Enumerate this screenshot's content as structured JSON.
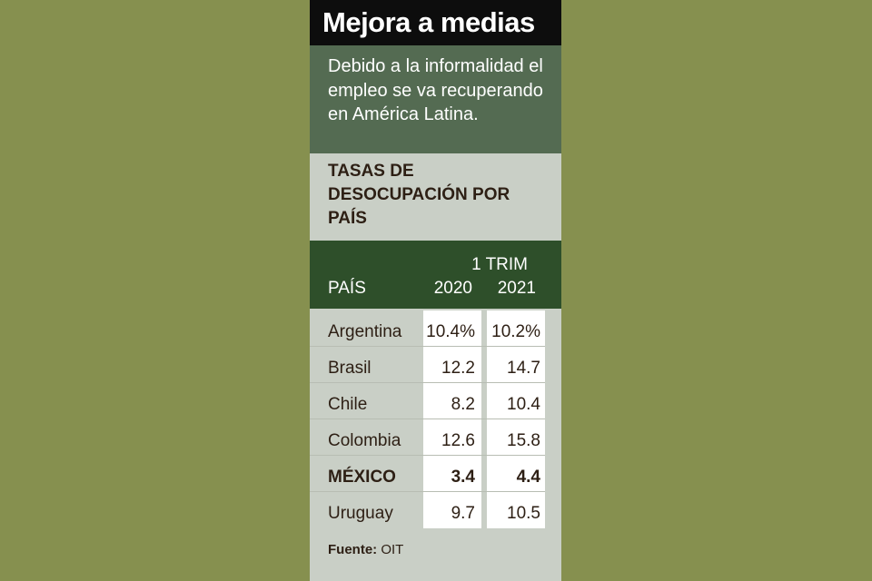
{
  "title": "Mejora a medias",
  "subtitle": "Debido a la informalidad el empleo se va recuperando en América Latina.",
  "chart_data": {
    "type": "table",
    "title": "TASAS DE DESOCUPACIÓN POR PAÍS",
    "column_group": "1 TRIM",
    "columns": [
      "PAÍS",
      "2020",
      "2021"
    ],
    "rows": [
      {
        "country": "Argentina",
        "v2020": "10.4%",
        "v2021": "10.2%",
        "highlight": false
      },
      {
        "country": "Brasil",
        "v2020": "12.2",
        "v2021": "14.7",
        "highlight": false
      },
      {
        "country": "Chile",
        "v2020": "8.2",
        "v2021": "10.4",
        "highlight": false
      },
      {
        "country": "Colombia",
        "v2020": "12.6",
        "v2021": "15.8",
        "highlight": false
      },
      {
        "country": "MÉXICO",
        "v2020": "3.4",
        "v2021": "4.4",
        "highlight": true
      },
      {
        "country": "Uruguay",
        "v2020": "9.7",
        "v2021": "10.5",
        "highlight": false
      }
    ]
  },
  "source": {
    "label": "Fuente:",
    "value": "OIT"
  }
}
